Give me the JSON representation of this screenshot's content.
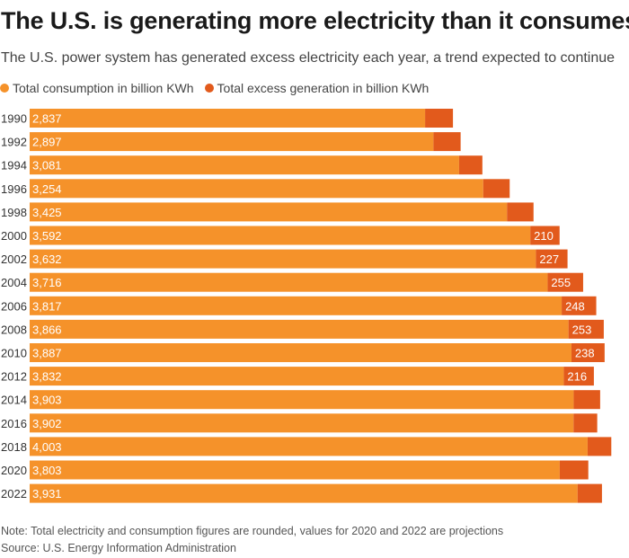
{
  "header": {
    "title": "The U.S. is generating more electricity than it consumes",
    "subtitle": "The U.S. power system has generated excess electricity each year, a trend expected to continue"
  },
  "legend": [
    {
      "label": "Total consumption in billion KWh",
      "color": "#f5922a"
    },
    {
      "label": "Total excess generation in billion KWh",
      "color": "#e25a1c"
    }
  ],
  "footer": {
    "note": "Note: Total electricity and consumption figures are rounded, values for 2020 and 2022 are projections",
    "source": "Source: U.S. Energy Information Administration"
  },
  "chart_data": {
    "type": "bar",
    "orientation": "horizontal",
    "stacked": true,
    "categories": [
      "1990",
      "1992",
      "1994",
      "1996",
      "1998",
      "2000",
      "2002",
      "2004",
      "2006",
      "2008",
      "2010",
      "2012",
      "2014",
      "2016",
      "2018",
      "2020",
      "2022"
    ],
    "series": [
      {
        "name": "Total consumption in billion KWh",
        "color": "#f5922a",
        "values": [
          2837,
          2897,
          3081,
          3254,
          3425,
          3592,
          3632,
          3716,
          3817,
          3866,
          3887,
          3832,
          3903,
          3902,
          4003,
          3803,
          3931
        ],
        "labels": [
          "2,837",
          "2,897",
          "3,081",
          "3,254",
          "3,425",
          "3,592",
          "3,632",
          "3,716",
          "3,817",
          "3,866",
          "3,887",
          "3,832",
          "3,903",
          "3,902",
          "4,003",
          "3,803",
          "3,931"
        ]
      },
      {
        "name": "Total excess generation in billion KWh",
        "color": "#e25a1c",
        "values": [
          200,
          195,
          167,
          190,
          190,
          210,
          227,
          255,
          248,
          253,
          238,
          216,
          190,
          170,
          170,
          205,
          175
        ],
        "labels": [
          "",
          "",
          "",
          "",
          "",
          "210",
          "227",
          "255",
          "248",
          "253",
          "238",
          "216",
          "",
          "",
          "",
          "",
          ""
        ]
      }
    ],
    "xlim": [
      0,
      4300
    ],
    "grid": false,
    "legend_position": "top-left"
  }
}
